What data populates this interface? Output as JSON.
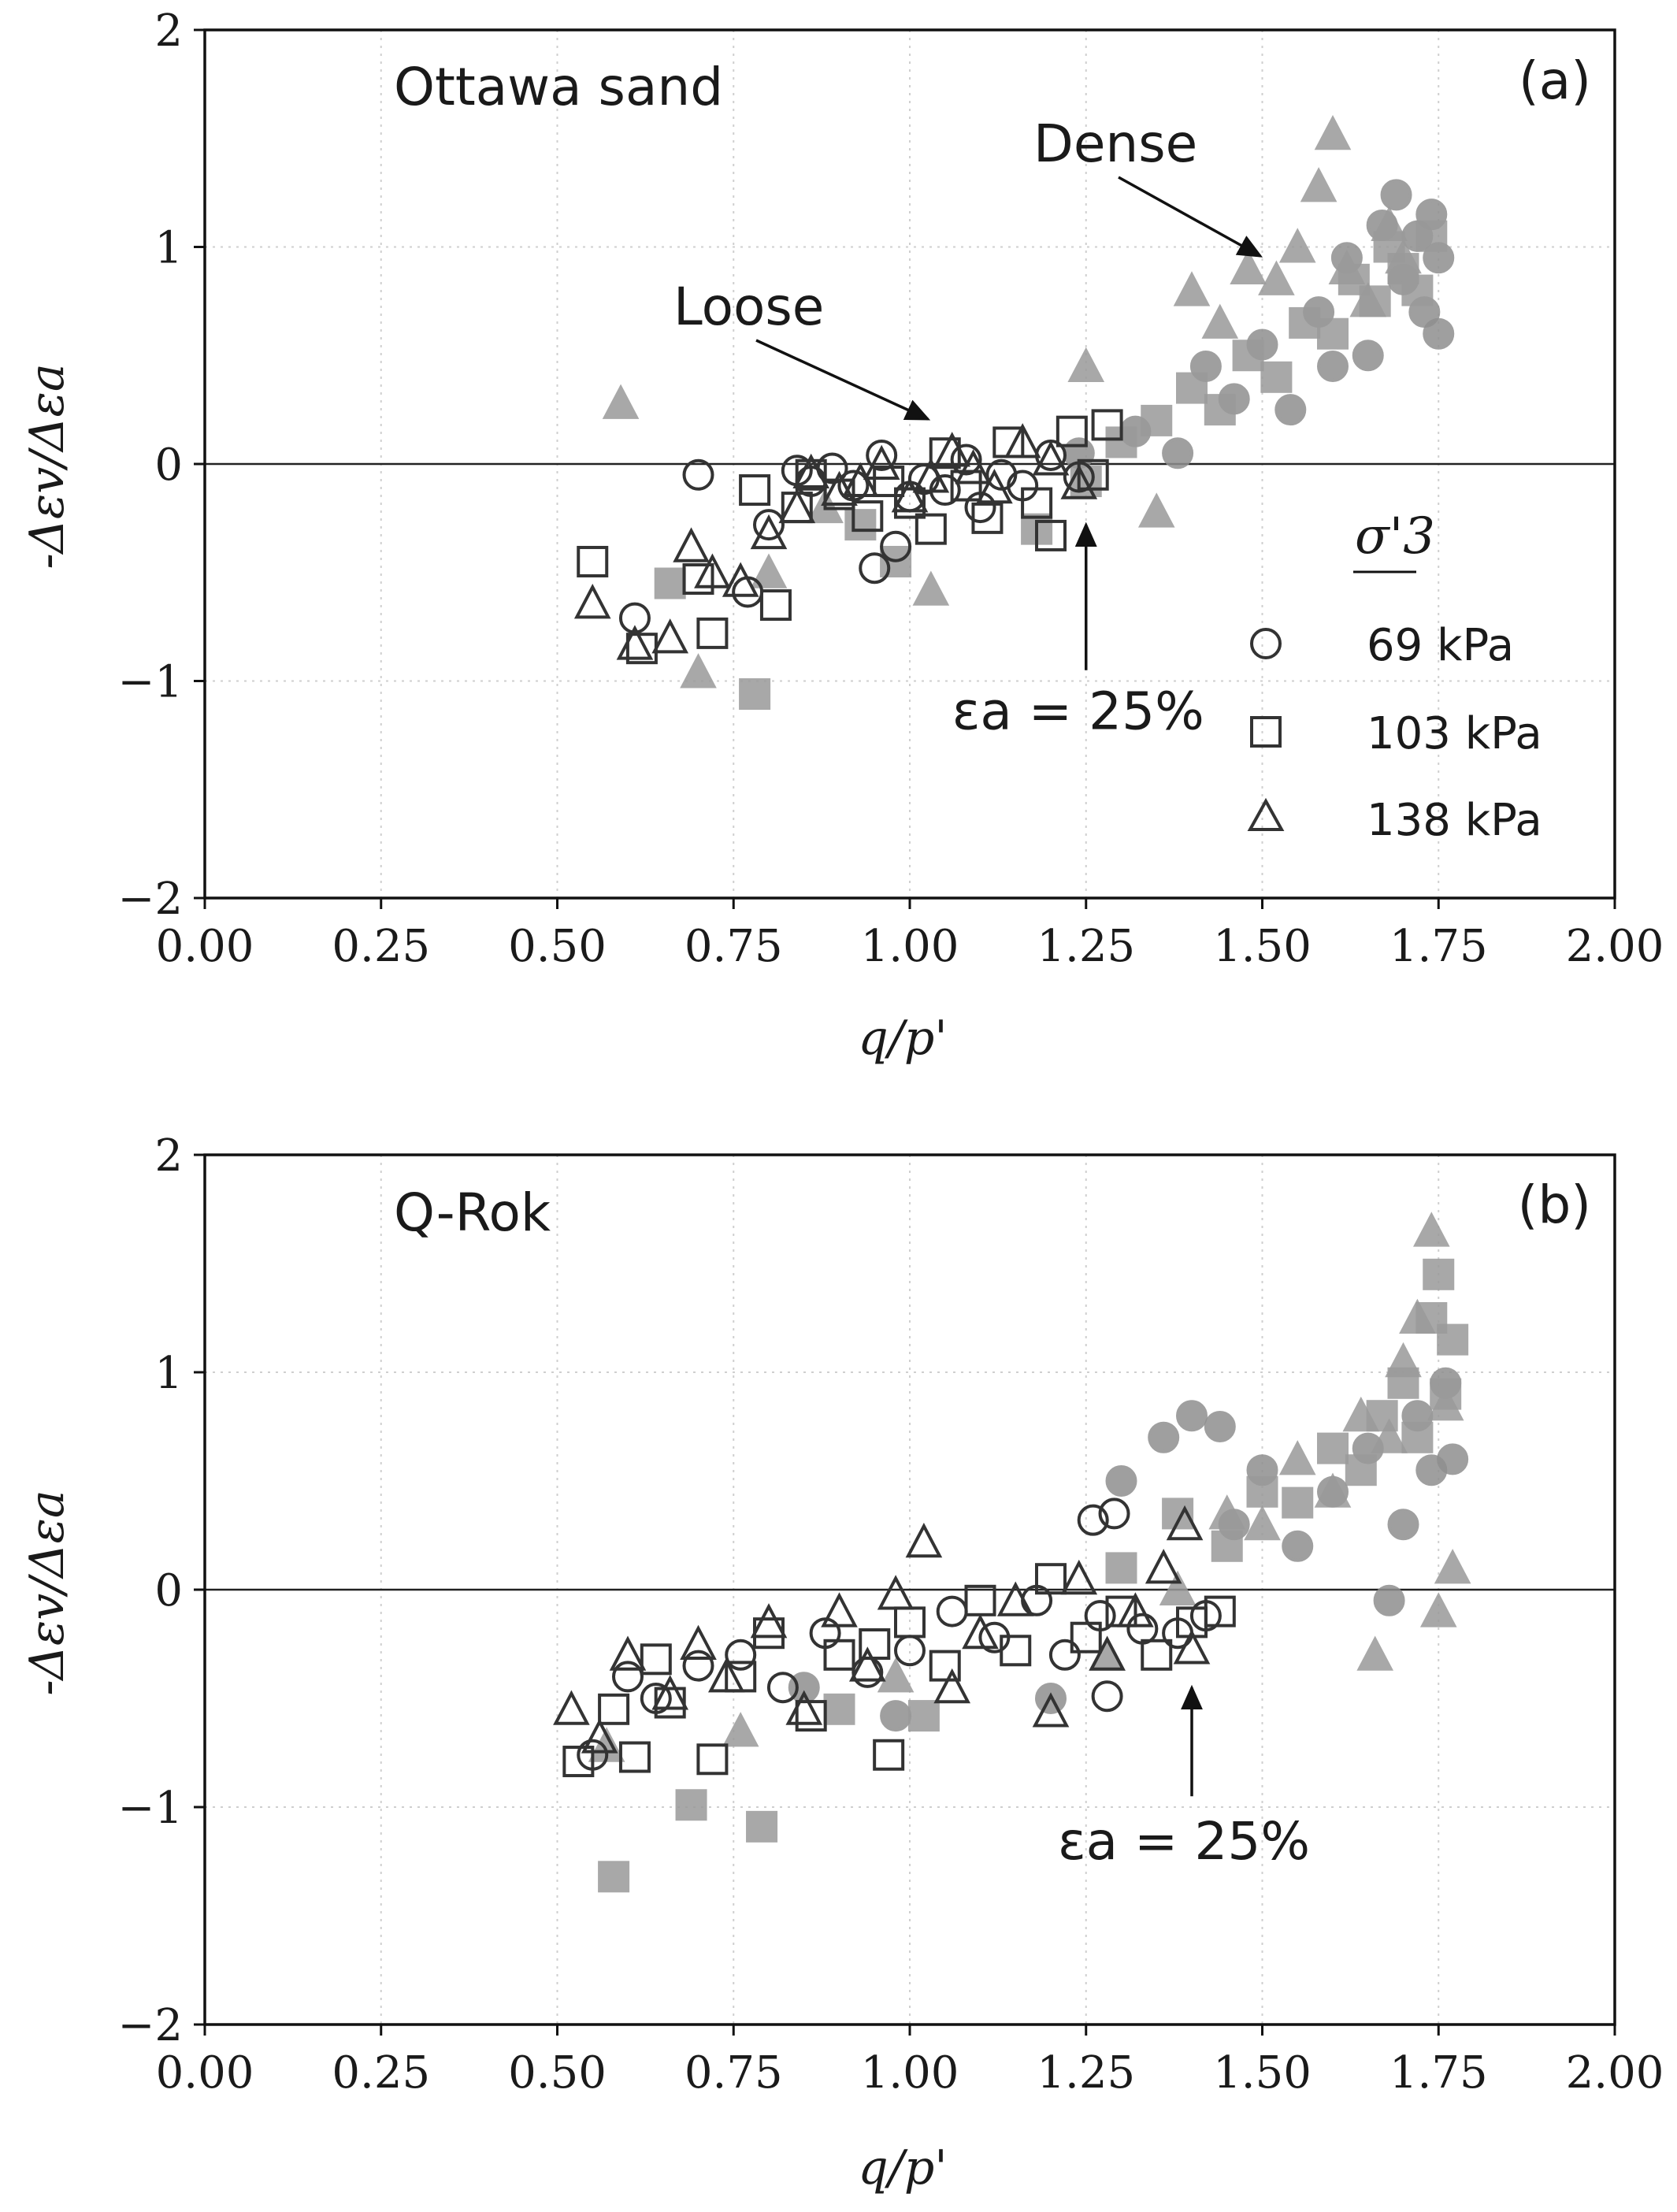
{
  "chart_data": [
    {
      "type": "scatter",
      "title": "",
      "label": "Ottawa sand",
      "panel_tag": "(a)",
      "xlabel": "q/p'",
      "ylabel": "-Δεv/Δεa",
      "xlim": [
        0,
        2
      ],
      "ylim": [
        -2,
        2
      ],
      "xticks": [
        "0.00",
        "0.25",
        "0.50",
        "0.75",
        "1.00",
        "1.25",
        "1.50",
        "1.75",
        "2.00"
      ],
      "yticks": [
        "−2",
        "−1",
        "0",
        "1",
        "2"
      ],
      "grid": true,
      "annotations": {
        "loose": "Loose",
        "dense": "Dense",
        "strain": "εa = 25%",
        "strain_x": 1.25
      },
      "legend": {
        "title": "σ'3",
        "placement": "right",
        "entries": [
          {
            "label": "69 kPa",
            "marker": "circle"
          },
          {
            "label": "103 kPa",
            "marker": "square"
          },
          {
            "label": "138 kPa",
            "marker": "triangle"
          }
        ]
      },
      "series": [
        {
          "name": "Loose 69 kPa",
          "marker": "circle",
          "style": "open-dark",
          "color": "#333333",
          "x": [
            0.61,
            0.7,
            0.77,
            0.8,
            0.84,
            0.86,
            0.89,
            0.92,
            0.95,
            0.96,
            0.98,
            1.0,
            1.02,
            1.05,
            1.08,
            1.1,
            1.13,
            1.16,
            1.2,
            1.24
          ],
          "y": [
            -0.71,
            -0.05,
            -0.59,
            -0.28,
            -0.03,
            -0.08,
            -0.02,
            -0.1,
            -0.48,
            0.04,
            -0.38,
            -0.15,
            -0.07,
            -0.12,
            0.02,
            -0.2,
            -0.05,
            -0.1,
            0.04,
            -0.06
          ]
        },
        {
          "name": "Loose 103 kPa",
          "marker": "square",
          "style": "open-dark",
          "color": "#333333",
          "x": [
            0.55,
            0.62,
            0.7,
            0.72,
            0.78,
            0.81,
            0.84,
            0.86,
            0.9,
            0.94,
            0.97,
            1.0,
            1.03,
            1.05,
            1.08,
            1.11,
            1.14,
            1.18,
            1.2,
            1.23,
            1.26,
            1.28
          ],
          "y": [
            -0.45,
            -0.85,
            -0.53,
            -0.78,
            -0.12,
            -0.65,
            -0.2,
            -0.05,
            -0.14,
            -0.24,
            -0.08,
            -0.18,
            -0.3,
            0.05,
            -0.1,
            -0.25,
            0.1,
            -0.18,
            -0.33,
            0.15,
            -0.05,
            0.18
          ]
        },
        {
          "name": "Loose 138 kPa",
          "marker": "triangle",
          "style": "open-dark",
          "color": "#333333",
          "x": [
            0.55,
            0.61,
            0.66,
            0.69,
            0.72,
            0.76,
            0.8,
            0.84,
            0.86,
            0.9,
            0.93,
            0.96,
            1.0,
            1.03,
            1.06,
            1.09,
            1.12,
            1.16,
            1.2,
            1.24
          ],
          "y": [
            -0.64,
            -0.83,
            -0.8,
            -0.38,
            -0.5,
            -0.54,
            -0.32,
            -0.2,
            -0.04,
            -0.12,
            -0.08,
            0.0,
            -0.15,
            -0.06,
            0.06,
            -0.02,
            -0.11,
            0.1,
            0.02,
            -0.09
          ]
        },
        {
          "name": "Dense 69 kPa",
          "marker": "circle",
          "style": "filled-grey",
          "color": "#8f8f8f",
          "x": [
            1.24,
            1.32,
            1.38,
            1.42,
            1.46,
            1.5,
            1.54,
            1.58,
            1.6,
            1.62,
            1.65,
            1.67,
            1.69,
            1.7,
            1.72,
            1.73,
            1.74,
            1.75,
            1.75
          ],
          "y": [
            0.05,
            0.15,
            0.05,
            0.45,
            0.3,
            0.55,
            0.25,
            0.7,
            0.45,
            0.95,
            0.5,
            1.1,
            1.24,
            0.85,
            1.05,
            0.7,
            1.15,
            0.95,
            0.6
          ]
        },
        {
          "name": "Dense 103 kPa",
          "marker": "square",
          "style": "filled-grey",
          "color": "#9a9a9a",
          "x": [
            0.66,
            0.78,
            0.93,
            0.98,
            1.18,
            1.25,
            1.3,
            1.35,
            1.4,
            1.44,
            1.48,
            1.52,
            1.56,
            1.6,
            1.63,
            1.66,
            1.68,
            1.7,
            1.72,
            1.74
          ],
          "y": [
            -0.55,
            -1.06,
            -0.28,
            -0.45,
            -0.3,
            -0.08,
            0.1,
            0.2,
            0.35,
            0.25,
            0.5,
            0.4,
            0.65,
            0.6,
            0.85,
            0.75,
            1.0,
            0.9,
            0.8,
            1.05
          ]
        },
        {
          "name": "Dense 138 kPa",
          "marker": "triangle",
          "style": "filled-grey",
          "color": "#9a9a9a",
          "x": [
            0.59,
            0.7,
            0.8,
            0.88,
            1.03,
            1.25,
            1.35,
            1.4,
            1.44,
            1.48,
            1.52,
            1.55,
            1.58,
            1.6,
            1.62,
            1.65,
            1.68,
            1.7
          ],
          "y": [
            0.28,
            -0.96,
            -0.5,
            -0.2,
            -0.58,
            0.45,
            -0.22,
            0.8,
            0.65,
            0.9,
            0.85,
            1.0,
            1.28,
            1.52,
            0.9,
            0.75,
            1.1,
            0.95
          ]
        }
      ]
    },
    {
      "type": "scatter",
      "title": "",
      "label": "Q-Rok",
      "panel_tag": "(b)",
      "xlabel": "q/p'",
      "ylabel": "-Δεv/Δεa",
      "xlim": [
        0,
        2
      ],
      "ylim": [
        -2,
        2
      ],
      "xticks": [
        "0.00",
        "0.25",
        "0.50",
        "0.75",
        "1.00",
        "1.25",
        "1.50",
        "1.75",
        "2.00"
      ],
      "yticks": [
        "−2",
        "−1",
        "0",
        "1",
        "2"
      ],
      "grid": true,
      "annotations": {
        "strain": "εa = 25%",
        "strain_x": 1.4
      },
      "series": [
        {
          "name": "Loose 69 kPa",
          "marker": "circle",
          "style": "open-dark",
          "color": "#333333",
          "x": [
            0.55,
            0.6,
            0.64,
            0.7,
            0.76,
            0.82,
            0.88,
            0.94,
            1.0,
            1.06,
            1.12,
            1.18,
            1.22,
            1.26,
            1.27,
            1.28,
            1.29,
            1.33,
            1.38,
            1.42
          ],
          "y": [
            -0.76,
            -0.4,
            -0.5,
            -0.35,
            -0.3,
            -0.45,
            -0.2,
            -0.38,
            -0.28,
            -0.1,
            -0.22,
            -0.05,
            -0.3,
            0.32,
            -0.12,
            -0.49,
            0.35,
            -0.18,
            -0.2,
            -0.12
          ]
        },
        {
          "name": "Loose 103 kPa",
          "marker": "square",
          "style": "open-dark",
          "color": "#333333",
          "x": [
            0.53,
            0.58,
            0.61,
            0.64,
            0.66,
            0.72,
            0.76,
            0.8,
            0.86,
            0.9,
            0.95,
            0.97,
            1.0,
            1.05,
            1.1,
            1.15,
            1.2,
            1.25,
            1.3,
            1.35,
            1.4,
            1.44
          ],
          "y": [
            -0.79,
            -0.55,
            -0.77,
            -0.32,
            -0.52,
            -0.78,
            -0.4,
            -0.2,
            -0.58,
            -0.3,
            -0.25,
            -0.76,
            -0.15,
            -0.35,
            -0.05,
            -0.28,
            0.05,
            -0.22,
            -0.1,
            -0.3,
            -0.15,
            -0.1
          ]
        },
        {
          "name": "Loose 138 kPa",
          "marker": "triangle",
          "style": "open-dark",
          "color": "#333333",
          "x": [
            0.52,
            0.56,
            0.6,
            0.66,
            0.7,
            0.74,
            0.8,
            0.85,
            0.9,
            0.94,
            0.98,
            1.02,
            1.06,
            1.1,
            1.15,
            1.2,
            1.24,
            1.28,
            1.32,
            1.36,
            1.39,
            1.4
          ],
          "y": [
            -0.55,
            -0.68,
            -0.3,
            -0.48,
            -0.25,
            -0.4,
            -0.15,
            -0.55,
            -0.1,
            -0.35,
            -0.02,
            0.22,
            -0.45,
            -0.2,
            -0.05,
            -0.56,
            0.05,
            -0.3,
            -0.1,
            0.1,
            0.3,
            -0.27
          ]
        },
        {
          "name": "Dense 69 kPa",
          "marker": "circle",
          "style": "filled-grey",
          "color": "#8f8f8f",
          "x": [
            0.85,
            0.98,
            1.2,
            1.3,
            1.36,
            1.4,
            1.44,
            1.46,
            1.5,
            1.55,
            1.6,
            1.65,
            1.68,
            1.7,
            1.72,
            1.74,
            1.76,
            1.77
          ],
          "y": [
            -0.45,
            -0.58,
            -0.5,
            0.5,
            0.7,
            0.8,
            0.75,
            0.3,
            0.55,
            0.2,
            0.45,
            0.65,
            -0.05,
            0.3,
            0.8,
            0.55,
            0.95,
            0.6
          ]
        },
        {
          "name": "Dense 103 kPa",
          "marker": "square",
          "style": "filled-grey",
          "color": "#9a9a9a",
          "x": [
            0.58,
            0.69,
            0.79,
            0.9,
            1.02,
            1.3,
            1.38,
            1.45,
            1.5,
            1.55,
            1.6,
            1.64,
            1.67,
            1.7,
            1.72,
            1.74,
            1.75,
            1.76,
            1.77
          ],
          "y": [
            -1.32,
            -0.99,
            -1.09,
            -0.55,
            -0.58,
            0.1,
            0.35,
            0.2,
            0.45,
            0.4,
            0.65,
            0.55,
            0.8,
            0.95,
            0.7,
            1.25,
            1.45,
            0.9,
            1.15
          ]
        },
        {
          "name": "Dense 138 kPa",
          "marker": "triangle",
          "style": "filled-grey",
          "color": "#9a9a9a",
          "x": [
            0.57,
            0.76,
            0.98,
            1.28,
            1.38,
            1.45,
            1.5,
            1.55,
            1.6,
            1.64,
            1.66,
            1.68,
            1.7,
            1.72,
            1.74,
            1.75,
            1.76,
            1.77
          ],
          "y": [
            -0.72,
            -0.65,
            -0.4,
            -0.3,
            0.0,
            0.35,
            0.3,
            0.6,
            0.45,
            0.8,
            -0.3,
            0.7,
            1.05,
            1.25,
            1.65,
            -0.1,
            0.85,
            0.1
          ]
        }
      ]
    }
  ]
}
